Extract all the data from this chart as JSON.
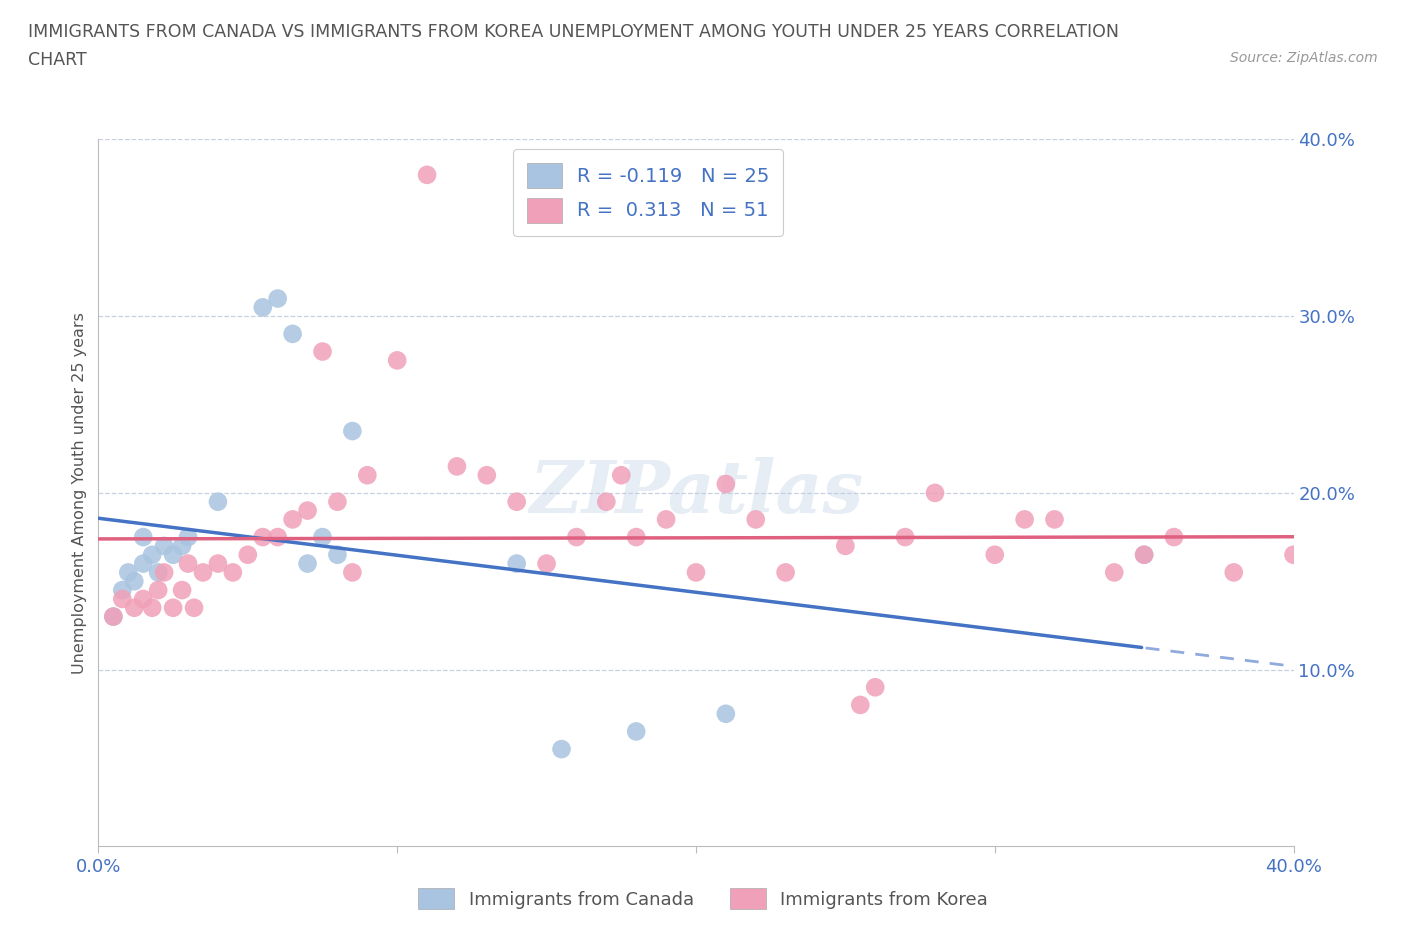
{
  "title_line1": "IMMIGRANTS FROM CANADA VS IMMIGRANTS FROM KOREA UNEMPLOYMENT AMONG YOUTH UNDER 25 YEARS CORRELATION",
  "title_line2": "CHART",
  "source": "Source: ZipAtlas.com",
  "ylabel": "Unemployment Among Youth under 25 years",
  "xlim": [
    0.0,
    0.4
  ],
  "ylim": [
    0.0,
    0.4
  ],
  "canada_color": "#a8c4e0",
  "korea_color": "#f0a0b8",
  "canada_line_color": "#4472c4",
  "korea_line_color": "#e06080",
  "bottom_legend_canada": "Immigrants from Canada",
  "bottom_legend_korea": "Immigrants from Korea",
  "watermark": "ZIPatlas",
  "canada_x": [
    0.005,
    0.008,
    0.01,
    0.012,
    0.015,
    0.015,
    0.018,
    0.02,
    0.022,
    0.025,
    0.028,
    0.03,
    0.04,
    0.055,
    0.06,
    0.065,
    0.07,
    0.075,
    0.08,
    0.085,
    0.14,
    0.155,
    0.18,
    0.21,
    0.35
  ],
  "canada_y": [
    0.13,
    0.145,
    0.155,
    0.15,
    0.16,
    0.175,
    0.165,
    0.155,
    0.17,
    0.165,
    0.17,
    0.175,
    0.195,
    0.305,
    0.31,
    0.29,
    0.16,
    0.175,
    0.165,
    0.235,
    0.16,
    0.055,
    0.065,
    0.075,
    0.165
  ],
  "korea_x": [
    0.005,
    0.008,
    0.012,
    0.015,
    0.018,
    0.02,
    0.022,
    0.025,
    0.028,
    0.03,
    0.032,
    0.035,
    0.04,
    0.045,
    0.05,
    0.055,
    0.06,
    0.065,
    0.07,
    0.075,
    0.08,
    0.085,
    0.09,
    0.1,
    0.11,
    0.12,
    0.13,
    0.14,
    0.15,
    0.16,
    0.17,
    0.175,
    0.18,
    0.19,
    0.2,
    0.21,
    0.22,
    0.23,
    0.25,
    0.255,
    0.26,
    0.27,
    0.28,
    0.3,
    0.31,
    0.32,
    0.34,
    0.35,
    0.36,
    0.38,
    0.4
  ],
  "korea_y": [
    0.13,
    0.14,
    0.135,
    0.14,
    0.135,
    0.145,
    0.155,
    0.135,
    0.145,
    0.16,
    0.135,
    0.155,
    0.16,
    0.155,
    0.165,
    0.175,
    0.175,
    0.185,
    0.19,
    0.28,
    0.195,
    0.155,
    0.21,
    0.275,
    0.38,
    0.215,
    0.21,
    0.195,
    0.16,
    0.175,
    0.195,
    0.21,
    0.175,
    0.185,
    0.155,
    0.205,
    0.185,
    0.155,
    0.17,
    0.08,
    0.09,
    0.175,
    0.2,
    0.165,
    0.185,
    0.185,
    0.155,
    0.165,
    0.175,
    0.155,
    0.165
  ]
}
